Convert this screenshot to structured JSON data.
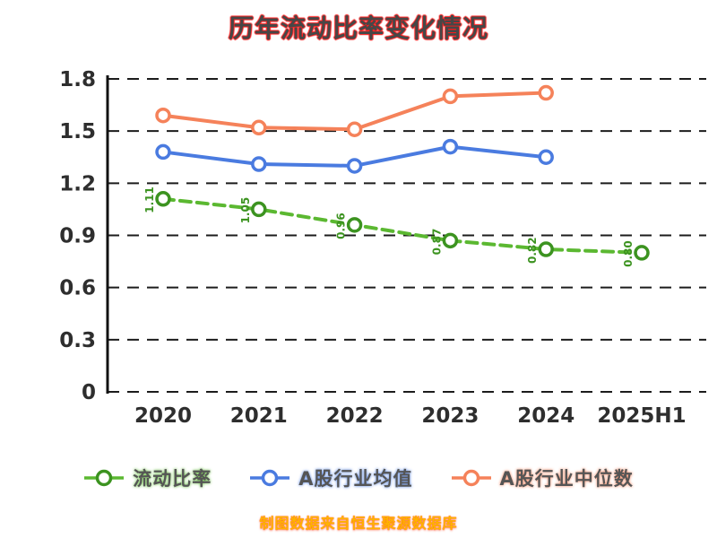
{
  "chart_data": {
    "type": "line",
    "title": "历年流动比率变化情况",
    "categories": [
      "2020",
      "2021",
      "2022",
      "2023",
      "2024",
      "2025H1"
    ],
    "series": [
      {
        "name": "流动比率",
        "color": "#5bb831",
        "marker_stroke": "#3c9320",
        "line_style": "dashed",
        "show_point_labels": true,
        "values": [
          1.11,
          1.05,
          0.96,
          0.87,
          0.82,
          0.8
        ]
      },
      {
        "name": "A股行业均值",
        "color": "#4a7be0",
        "marker_stroke": "#4a7be0",
        "line_style": "solid",
        "show_point_labels": false,
        "values": [
          1.38,
          1.31,
          1.3,
          1.41,
          1.35,
          null
        ]
      },
      {
        "name": "A股行业中位数",
        "color": "#f5825a",
        "marker_stroke": "#f5825a",
        "line_style": "solid",
        "show_point_labels": false,
        "values": [
          1.59,
          1.52,
          1.51,
          1.7,
          1.72,
          null
        ]
      }
    ],
    "ylim": [
      0,
      1.8
    ],
    "yticks": [
      "0",
      "0.3",
      "0.6",
      "0.9",
      "1.2",
      "1.5",
      "1.8"
    ],
    "xlabel": "",
    "ylabel": "",
    "grid": "horizontal-dashed",
    "legend_position": "bottom",
    "axis_color": "#111111",
    "tick_label_color": "#2e2e2e"
  },
  "footer": {
    "text": "制图数据来自恒生聚源数据库"
  }
}
